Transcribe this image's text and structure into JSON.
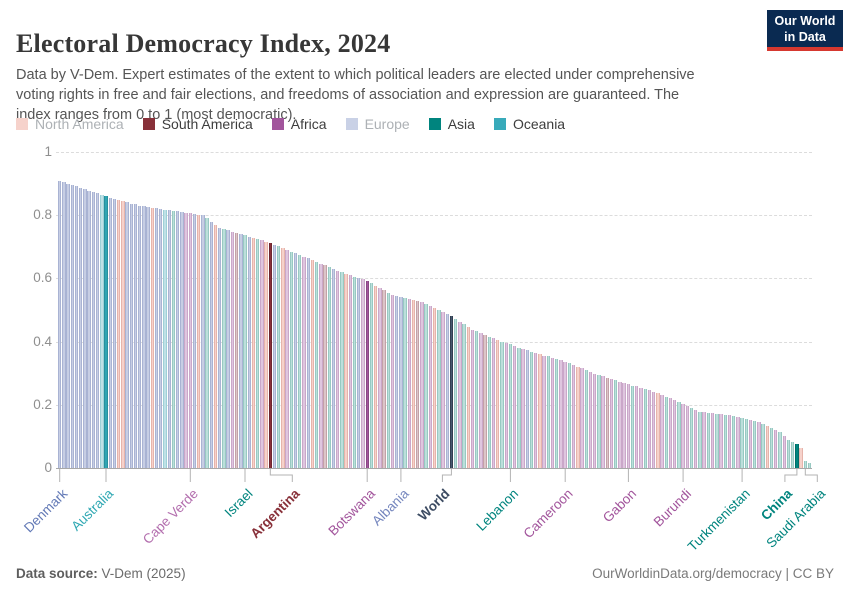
{
  "header": {
    "title": "Electoral Democracy Index, 2024",
    "subtitle": "Data by V-Dem. Expert estimates of the extent to which political leaders are elected under comprehensive voting rights in free and fair elections, and freedoms of association and expression are guaranteed. The index ranges from 0 to 1 (most democratic).",
    "logo": {
      "line1": "Our World",
      "line2": "in Data",
      "bg": "#0A2A51",
      "stripe": "#D6382F"
    }
  },
  "legend": {
    "items": [
      {
        "label": "North America",
        "swatch": "#F6D2CB",
        "text_color": "#ADB1B5"
      },
      {
        "label": "South America",
        "swatch": "#883039",
        "text_color": "#3D3D3D"
      },
      {
        "label": "Africa",
        "swatch": "#A2559C",
        "text_color": "#3D3D3D"
      },
      {
        "label": "Europe",
        "swatch": "#C9D1E6",
        "text_color": "#ADB1B5"
      },
      {
        "label": "Asia",
        "swatch": "#00847E",
        "text_color": "#3D3D3D"
      },
      {
        "label": "Oceania",
        "swatch": "#38AABA",
        "text_color": "#3D3D3D"
      }
    ]
  },
  "chart_data": {
    "type": "bar",
    "title": "Electoral Democracy Index, 2024",
    "xlabel": "",
    "ylabel": "",
    "ylim": [
      0,
      1
    ],
    "grid": "dashed-horizontal",
    "yticks": [
      {
        "v": 0,
        "label": "0"
      },
      {
        "v": 0.2,
        "label": "0.2"
      },
      {
        "v": 0.4,
        "label": "0.4"
      },
      {
        "v": 0.6,
        "label": "0.6"
      },
      {
        "v": 0.8,
        "label": "0.8"
      },
      {
        "v": 1,
        "label": "1"
      }
    ],
    "values": [
      0.908,
      0.904,
      0.899,
      0.895,
      0.891,
      0.886,
      0.882,
      0.877,
      0.873,
      0.869,
      0.864,
      0.86,
      0.856,
      0.852,
      0.849,
      0.845,
      0.841,
      0.837,
      0.834,
      0.83,
      0.828,
      0.826,
      0.824,
      0.822,
      0.82,
      0.818,
      0.816,
      0.814,
      0.812,
      0.81,
      0.808,
      0.806,
      0.804,
      0.802,
      0.8,
      0.79,
      0.78,
      0.77,
      0.76,
      0.756,
      0.752,
      0.748,
      0.744,
      0.74,
      0.736,
      0.732,
      0.728,
      0.724,
      0.72,
      0.716,
      0.712,
      0.707,
      0.701,
      0.696,
      0.69,
      0.685,
      0.679,
      0.674,
      0.669,
      0.663,
      0.658,
      0.652,
      0.647,
      0.642,
      0.636,
      0.631,
      0.625,
      0.62,
      0.615,
      0.611,
      0.606,
      0.601,
      0.597,
      0.592,
      0.585,
      0.577,
      0.57,
      0.562,
      0.555,
      0.547,
      0.544,
      0.541,
      0.538,
      0.534,
      0.531,
      0.528,
      0.525,
      0.519,
      0.512,
      0.506,
      0.5,
      0.494,
      0.487,
      0.481,
      0.472,
      0.463,
      0.455,
      0.446,
      0.437,
      0.432,
      0.426,
      0.421,
      0.416,
      0.41,
      0.405,
      0.4,
      0.395,
      0.391,
      0.386,
      0.381,
      0.376,
      0.372,
      0.367,
      0.363,
      0.36,
      0.356,
      0.353,
      0.349,
      0.346,
      0.342,
      0.337,
      0.331,
      0.326,
      0.32,
      0.315,
      0.309,
      0.304,
      0.299,
      0.295,
      0.29,
      0.286,
      0.281,
      0.277,
      0.272,
      0.268,
      0.265,
      0.261,
      0.258,
      0.254,
      0.251,
      0.247,
      0.242,
      0.236,
      0.231,
      0.225,
      0.22,
      0.214,
      0.209,
      0.203,
      0.196,
      0.19,
      0.183,
      0.177,
      0.176,
      0.174,
      0.173,
      0.172,
      0.171,
      0.169,
      0.168,
      0.165,
      0.162,
      0.159,
      0.155,
      0.152,
      0.149,
      0.146,
      0.14,
      0.133,
      0.127,
      0.12,
      0.114,
      0.101,
      0.089,
      0.082,
      0.076,
      0.063,
      0.022,
      0.016
    ],
    "continents": "EEEEEEEEEEOOEENNEEEEEENEEOEAEEFFENEAENEAEFSEAENAFNSEANFAEAFENAFSAEFANFAEFFANFSAFEEAFNSFAFNAFEWAFANFAFSAFNAFAFAFEAFNFAFAFFAFNFAFFAFSFAFFFAFFAFFNFAFFAFFAFAFAFAFAFAFAAFAFANAFAFAAANAA",
    "continent_names": {
      "E": "Europe",
      "N": "North America",
      "A": "Asia",
      "F": "Africa",
      "O": "Oceania",
      "S": "South America",
      "W": "World"
    },
    "colors": {
      "faded": {
        "E": "#C7CEE4",
        "N": "#F6D2CB",
        "A": "#BCDFDB",
        "F": "#DFC6DF",
        "O": "#BFE1E6",
        "S": "#DCC5C9",
        "W": "#46596F"
      },
      "solid": {
        "E": "#4C6A9C",
        "N": "#E56E5A",
        "A": "#00847E",
        "F": "#A2559C",
        "O": "#2FA5B3",
        "S": "#883039",
        "W": "#46596F"
      },
      "border_faded": {
        "E": "#A9B3D3",
        "N": "#E6B4AB",
        "A": "#98C9C2",
        "F": "#CAA7C9",
        "O": "#9DD0D7",
        "S": "#C3A1A7",
        "W": "#3A4A5E"
      },
      "border_solid": {
        "E": "#3F587F",
        "N": "#C25A48",
        "A": "#006E68",
        "F": "#8A4785",
        "O": "#27909D",
        "S": "#6E2630",
        "W": "#333F50"
      }
    },
    "highlight_indices": [
      11,
      50,
      73,
      93,
      175
    ],
    "x_ticks": [
      {
        "label": "Denmark",
        "index": 0,
        "value": 0.908,
        "color": "#6279B6",
        "bold": false,
        "dx": 0
      },
      {
        "label": "Australia",
        "index": 11,
        "value": 0.86,
        "color": "#2FA8B3",
        "bold": false,
        "dx": 0
      },
      {
        "label": "Cape Verde",
        "index": 31,
        "value": 0.806,
        "color": "#B36EAE",
        "bold": false,
        "dx": 0
      },
      {
        "label": "Israel",
        "index": 44,
        "value": 0.736,
        "color": "#00847E",
        "bold": false,
        "dx": 0
      },
      {
        "label": "Argentina",
        "index": 50,
        "value": 0.712,
        "color": "#883039",
        "bold": true,
        "dx": 22
      },
      {
        "label": "Botswana",
        "index": 73,
        "value": 0.592,
        "color": "#A2559C",
        "bold": false,
        "dx": 0
      },
      {
        "label": "Albania",
        "index": 81,
        "value": 0.541,
        "color": "#7586BE",
        "bold": false,
        "dx": 0
      },
      {
        "label": "World",
        "index": 93,
        "value": 0.481,
        "color": "#3D4C63",
        "bold": true,
        "dx": -9
      },
      {
        "label": "Lebanon",
        "index": 107,
        "value": 0.391,
        "color": "#00847E",
        "bold": false,
        "dx": 0
      },
      {
        "label": "Cameroon",
        "index": 120,
        "value": 0.337,
        "color": "#A2559C",
        "bold": false,
        "dx": 0
      },
      {
        "label": "Gabon",
        "index": 135,
        "value": 0.265,
        "color": "#A2559C",
        "bold": false,
        "dx": 0
      },
      {
        "label": "Burundi",
        "index": 148,
        "value": 0.203,
        "color": "#A2559C",
        "bold": false,
        "dx": 0
      },
      {
        "label": "Turkmenistan",
        "index": 162,
        "value": 0.159,
        "color": "#00847E",
        "bold": false,
        "dx": 0
      },
      {
        "label": "China",
        "index": 175,
        "value": 0.076,
        "color": "#00847E",
        "bold": true,
        "dx": -12
      },
      {
        "label": "Saudi Arabia",
        "index": 177,
        "value": 0.022,
        "color": "#00847E",
        "bold": false,
        "dx": 12
      }
    ]
  },
  "footer": {
    "source_label": "Data source:",
    "source_value": " V-Dem (2025)",
    "right": "OurWorldinData.org/democracy | CC BY"
  }
}
